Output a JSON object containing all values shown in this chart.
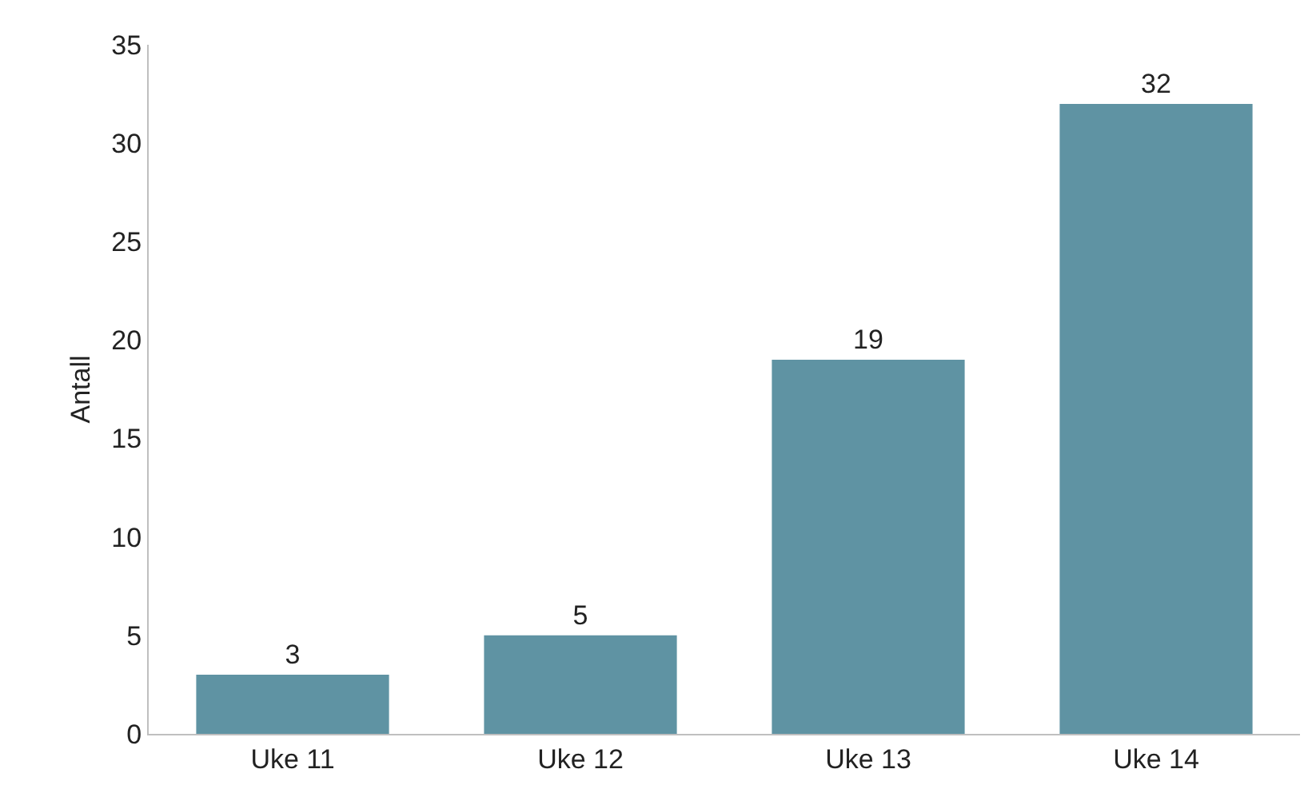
{
  "chart_data": {
    "type": "bar",
    "ylabel": "Antall",
    "categories": [
      "Uke 11",
      "Uke 12",
      "Uke 13",
      "Uke 14"
    ],
    "values": [
      3,
      5,
      19,
      32
    ],
    "color": "#5f93a3",
    "ylim": [
      0,
      35
    ],
    "yticks": [
      0,
      5,
      10,
      15,
      20,
      25,
      30,
      35
    ],
    "data_labels": true
  }
}
